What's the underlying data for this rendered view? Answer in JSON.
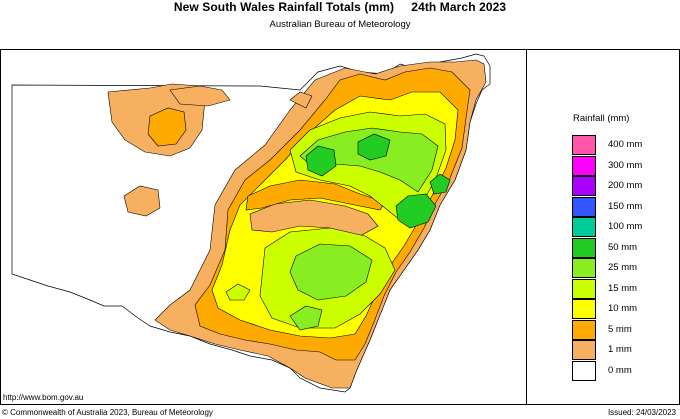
{
  "header": {
    "title": "New South Wales Rainfall Totals (mm)     24th March 2023",
    "subtitle": "Australian Bureau of Meteorology"
  },
  "legend": {
    "title": "Rainfall (mm)",
    "items": [
      {
        "label": "400 mm",
        "color": "#ff55aa"
      },
      {
        "label": "300 mm",
        "color": "#ff00ff"
      },
      {
        "label": "200 mm",
        "color": "#aa00ff"
      },
      {
        "label": "150 mm",
        "color": "#3355ff"
      },
      {
        "label": "100 mm",
        "color": "#00cc99"
      },
      {
        "label": "50 mm",
        "color": "#22cc22"
      },
      {
        "label": "25 mm",
        "color": "#88ee22"
      },
      {
        "label": "15 mm",
        "color": "#ccff00"
      },
      {
        "label": "10 mm",
        "color": "#ffff00"
      },
      {
        "label": "5 mm",
        "color": "#ffaa00"
      },
      {
        "label": "1 mm",
        "color": "#f7b060"
      },
      {
        "label": "0 mm",
        "color": "#ffffff"
      }
    ]
  },
  "footer": {
    "url": "http://www.bom.gov.au",
    "copyright": "© Commonwealth of Australia 2023, Bureau of Meteorology",
    "issued": "Issued: 24/03/2023"
  }
}
